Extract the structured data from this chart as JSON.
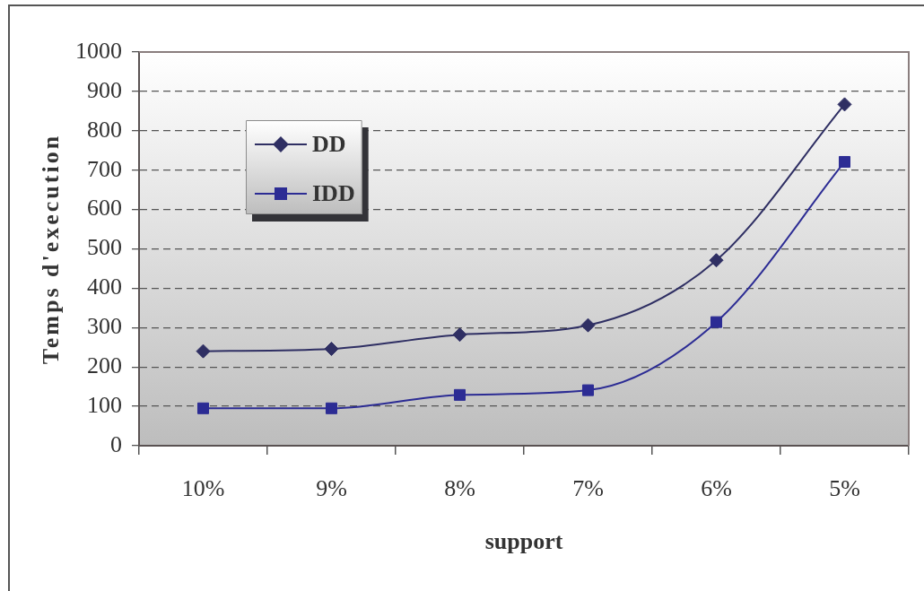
{
  "chart_data": {
    "type": "line",
    "xlabel": "support",
    "ylabel": "Temps d'execution",
    "categories": [
      "10%",
      "9%",
      "8%",
      "7%",
      "6%",
      "5%"
    ],
    "series": [
      {
        "name": "DD",
        "color": "#2f2f63",
        "marker": "diamond",
        "values": [
          240,
          246,
          282,
          306,
          471,
          867
        ]
      },
      {
        "name": "IDD",
        "color": "#2c2c94",
        "marker": "square",
        "values": [
          95,
          95,
          129,
          141,
          314,
          721
        ]
      }
    ],
    "ylim": [
      0,
      1000
    ],
    "yticks": [
      0,
      100,
      200,
      300,
      400,
      500,
      600,
      700,
      800,
      900,
      1000
    ],
    "grid": "y",
    "legend": "top left",
    "line_style": "solid"
  }
}
